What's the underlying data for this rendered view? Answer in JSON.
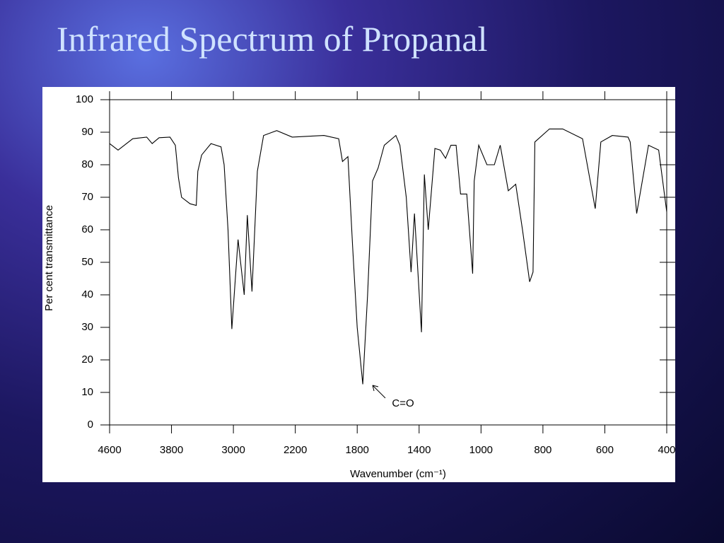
{
  "chart_data": {
    "type": "line",
    "title": "Infrared Spectrum of Propanal",
    "xlabel": "Wavenumber (cm⁻¹)",
    "ylabel": "Per cent transmittance",
    "annotation": "C=O",
    "color": "#000000",
    "xlim": [
      4600,
      400
    ],
    "xticks": [
      4600,
      3800,
      3000,
      2200,
      1800,
      1400,
      1000,
      800,
      600,
      400
    ],
    "ylim": [
      0,
      100
    ],
    "yticks": [
      0,
      10,
      20,
      30,
      40,
      50,
      60,
      70,
      80,
      90,
      100
    ],
    "x": [
      4600,
      4490,
      4300,
      4120,
      4050,
      3960,
      3820,
      3750,
      3710,
      3670,
      3560,
      3480,
      3460,
      3410,
      3290,
      3160,
      3120,
      3070,
      3020,
      2940,
      2860,
      2820,
      2760,
      2690,
      2610,
      2440,
      2240,
      2015,
      1920,
      1895,
      1860,
      1830,
      1800,
      1764,
      1733,
      1701,
      1665,
      1625,
      1550,
      1524,
      1483,
      1452,
      1430,
      1385,
      1366,
      1341,
      1298,
      1263,
      1229,
      1195,
      1161,
      1132,
      1092,
      1054,
      1044,
      1015,
      981,
      957,
      938,
      912,
      888,
      866,
      843,
      832,
      826,
      779,
      736,
      672,
      631,
      613,
      576,
      525,
      518,
      497,
      459,
      426,
      400
    ],
    "values": [
      86.5,
      84.5,
      88,
      88.5,
      86.5,
      88.3,
      88.5,
      86,
      76,
      70,
      68,
      67.5,
      78,
      83,
      86.5,
      85.5,
      80,
      60,
      29.5,
      57,
      40,
      64.5,
      41,
      78,
      89,
      90.5,
      88.5,
      89,
      88,
      81,
      82.5,
      55,
      30,
      12.5,
      40,
      75,
      79,
      86,
      89,
      86,
      70,
      47,
      65,
      28.5,
      77,
      60,
      85,
      84.5,
      82,
      86,
      86,
      71,
      71,
      46.5,
      75,
      86,
      80,
      80,
      86,
      72,
      74,
      60,
      44,
      47,
      87,
      91,
      91,
      88,
      66.5,
      87,
      89,
      88.5,
      87,
      65,
      86,
      84.5,
      65.5
    ]
  }
}
